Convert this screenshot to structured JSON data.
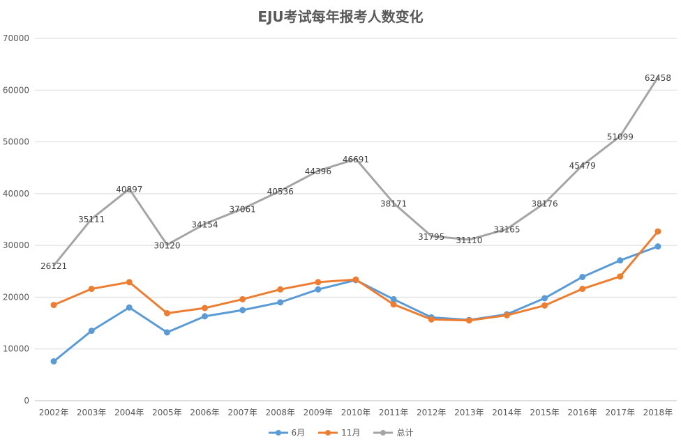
{
  "chart_data": {
    "type": "line",
    "title": "EJU考试每年报考人数变化",
    "xlabel": "",
    "ylabel": "",
    "categories": [
      "2002年",
      "2003年",
      "2004年",
      "2005年",
      "2006年",
      "2007年",
      "2008年",
      "2009年",
      "2010年",
      "2011年",
      "2012年",
      "2013年",
      "2014年",
      "2015年",
      "2016年",
      "2017年",
      "2018年"
    ],
    "ylim": [
      0,
      70000
    ],
    "yticks": [
      "0",
      "10000",
      "20000",
      "30000",
      "40000",
      "50000",
      "60000",
      "70000"
    ],
    "grid": "horizontal",
    "legend_position": "bottom",
    "series": [
      {
        "name": "6月",
        "color": "#5B9BD5",
        "values": [
          7600,
          13500,
          18000,
          13200,
          16300,
          17500,
          19000,
          21500,
          23300,
          19600,
          16100,
          15600,
          16700,
          19800,
          23900,
          27100,
          29800
        ],
        "show_labels": false
      },
      {
        "name": "11月",
        "color": "#ED7D31",
        "values": [
          18500,
          21600,
          22900,
          16900,
          17900,
          19600,
          21500,
          22900,
          23400,
          18600,
          15700,
          15500,
          16500,
          18400,
          21600,
          24000,
          32700
        ],
        "show_labels": false
      },
      {
        "name": "总计",
        "color": "#A5A5A5",
        "values": [
          26121,
          35111,
          40897,
          30120,
          34154,
          37061,
          40536,
          44396,
          46691,
          38171,
          31795,
          31110,
          33165,
          38176,
          45479,
          51099,
          62458
        ],
        "show_labels": true
      }
    ]
  }
}
